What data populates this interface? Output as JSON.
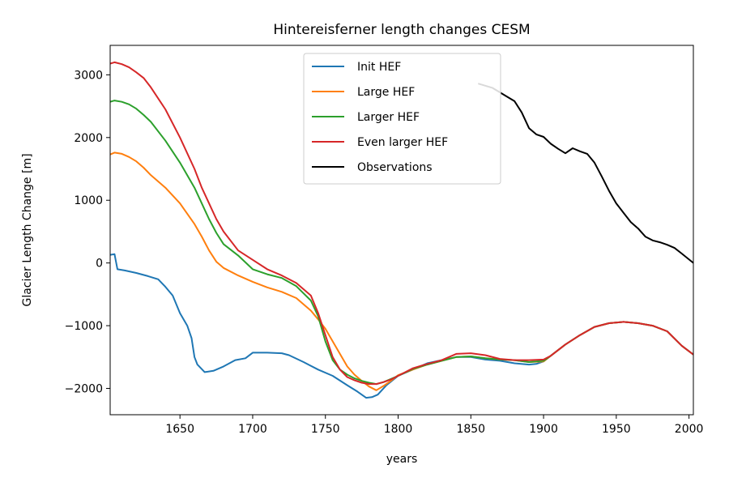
{
  "chart_data": {
    "type": "line",
    "title": "Hintereisferner length changes CESM",
    "xlabel": "years",
    "ylabel": "Glacier Length Change [m]",
    "xlim": [
      1602,
      2003
    ],
    "ylim": [
      -2420,
      3470
    ],
    "xticks": [
      1650,
      1700,
      1750,
      1800,
      1850,
      1900,
      1950,
      2000
    ],
    "yticks": [
      -2000,
      -1000,
      0,
      1000,
      2000,
      3000
    ],
    "ytick_labels": [
      "−2000",
      "−1000",
      "0",
      "1000",
      "2000",
      "3000"
    ],
    "grid": false,
    "legend_position": "top-center",
    "series": [
      {
        "name": "Init HEF",
        "color": "#1f77b4",
        "x": [
          1602,
          1605,
          1607,
          1612,
          1620,
          1628,
          1635,
          1640,
          1645,
          1650,
          1655,
          1658,
          1660,
          1662,
          1667,
          1673,
          1680,
          1688,
          1695,
          1700,
          1710,
          1720,
          1725,
          1735,
          1745,
          1755,
          1765,
          1772,
          1778,
          1782,
          1786,
          1792,
          1800,
          1810,
          1820,
          1830,
          1840,
          1850,
          1860,
          1870,
          1880,
          1890,
          1895,
          1900,
          1905,
          1915,
          1925,
          1935,
          1945,
          1955,
          1965,
          1975,
          1985,
          1995,
          2003
        ],
        "y": [
          130,
          140,
          -100,
          -120,
          -160,
          -210,
          -260,
          -380,
          -520,
          -800,
          -1000,
          -1200,
          -1500,
          -1620,
          -1740,
          -1720,
          -1650,
          -1550,
          -1520,
          -1430,
          -1430,
          -1440,
          -1470,
          -1580,
          -1700,
          -1800,
          -1950,
          -2050,
          -2150,
          -2140,
          -2100,
          -1950,
          -1800,
          -1700,
          -1600,
          -1550,
          -1500,
          -1500,
          -1540,
          -1560,
          -1600,
          -1620,
          -1610,
          -1570,
          -1480,
          -1300,
          -1150,
          -1020,
          -960,
          -940,
          -960,
          -1000,
          -1090,
          -1320,
          -1460
        ]
      },
      {
        "name": "Large HEF",
        "color": "#ff7f0e",
        "x": [
          1602,
          1605,
          1610,
          1615,
          1620,
          1625,
          1630,
          1640,
          1650,
          1660,
          1665,
          1670,
          1675,
          1680,
          1690,
          1700,
          1710,
          1720,
          1730,
          1740,
          1745,
          1750,
          1755,
          1760,
          1765,
          1770,
          1775,
          1780,
          1785,
          1790,
          1795,
          1800,
          1810,
          1820,
          1830,
          1840,
          1850,
          1860,
          1870,
          1880,
          1890,
          1900,
          1905,
          1915,
          1925,
          1935,
          1945,
          1955,
          1965,
          1975,
          1985,
          1995,
          2003
        ],
        "y": [
          1730,
          1760,
          1740,
          1690,
          1620,
          1520,
          1400,
          1200,
          950,
          620,
          420,
          200,
          20,
          -80,
          -200,
          -300,
          -390,
          -460,
          -560,
          -760,
          -900,
          -1050,
          -1250,
          -1450,
          -1650,
          -1780,
          -1880,
          -1970,
          -2030,
          -1960,
          -1880,
          -1790,
          -1700,
          -1620,
          -1560,
          -1500,
          -1490,
          -1520,
          -1540,
          -1550,
          -1580,
          -1570,
          -1480,
          -1300,
          -1150,
          -1020,
          -960,
          -940,
          -960,
          -1000,
          -1090,
          -1320,
          -1460
        ]
      },
      {
        "name": "Larger HEF",
        "color": "#2ca02c",
        "x": [
          1602,
          1605,
          1610,
          1615,
          1620,
          1625,
          1630,
          1640,
          1650,
          1660,
          1665,
          1670,
          1675,
          1680,
          1690,
          1700,
          1710,
          1720,
          1730,
          1740,
          1745,
          1750,
          1755,
          1760,
          1765,
          1770,
          1775,
          1780,
          1785,
          1790,
          1795,
          1800,
          1810,
          1820,
          1830,
          1840,
          1850,
          1860,
          1870,
          1880,
          1890,
          1900,
          1905,
          1915,
          1925,
          1935,
          1945,
          1955,
          1965,
          1975,
          1985,
          1995,
          2003
        ],
        "y": [
          2570,
          2590,
          2570,
          2530,
          2460,
          2360,
          2250,
          1950,
          1600,
          1200,
          950,
          700,
          480,
          300,
          120,
          -100,
          -180,
          -240,
          -370,
          -600,
          -850,
          -1250,
          -1550,
          -1700,
          -1780,
          -1840,
          -1880,
          -1910,
          -1930,
          -1900,
          -1850,
          -1800,
          -1690,
          -1620,
          -1560,
          -1500,
          -1490,
          -1520,
          -1540,
          -1550,
          -1580,
          -1560,
          -1480,
          -1300,
          -1150,
          -1020,
          -960,
          -940,
          -960,
          -1000,
          -1090,
          -1320,
          -1460
        ]
      },
      {
        "name": "Even larger HEF",
        "color": "#d62728",
        "x": [
          1602,
          1605,
          1610,
          1615,
          1620,
          1625,
          1630,
          1640,
          1650,
          1660,
          1665,
          1670,
          1675,
          1680,
          1690,
          1700,
          1710,
          1720,
          1730,
          1740,
          1745,
          1750,
          1755,
          1760,
          1765,
          1770,
          1775,
          1780,
          1785,
          1790,
          1795,
          1800,
          1810,
          1820,
          1830,
          1840,
          1850,
          1860,
          1870,
          1880,
          1890,
          1900,
          1905,
          1915,
          1925,
          1935,
          1945,
          1955,
          1965,
          1975,
          1985,
          1995,
          2003
        ],
        "y": [
          3180,
          3200,
          3170,
          3120,
          3040,
          2950,
          2800,
          2450,
          2000,
          1500,
          1200,
          950,
          700,
          500,
          200,
          50,
          -100,
          -200,
          -320,
          -520,
          -800,
          -1150,
          -1500,
          -1700,
          -1820,
          -1870,
          -1910,
          -1930,
          -1930,
          -1900,
          -1860,
          -1800,
          -1680,
          -1610,
          -1550,
          -1450,
          -1440,
          -1470,
          -1530,
          -1550,
          -1550,
          -1540,
          -1480,
          -1300,
          -1150,
          -1020,
          -960,
          -940,
          -960,
          -1000,
          -1090,
          -1320,
          -1460
        ]
      },
      {
        "name": "Observations",
        "color": "#000000",
        "x": [
          1855,
          1865,
          1875,
          1880,
          1885,
          1890,
          1895,
          1900,
          1905,
          1910,
          1915,
          1920,
          1925,
          1930,
          1935,
          1940,
          1945,
          1950,
          1955,
          1960,
          1965,
          1970,
          1975,
          1980,
          1985,
          1990,
          1995,
          2003
        ],
        "y": [
          2860,
          2790,
          2650,
          2580,
          2400,
          2150,
          2050,
          2010,
          1900,
          1820,
          1750,
          1830,
          1780,
          1740,
          1600,
          1380,
          1150,
          950,
          800,
          650,
          550,
          420,
          360,
          330,
          290,
          240,
          150,
          0
        ]
      }
    ]
  }
}
